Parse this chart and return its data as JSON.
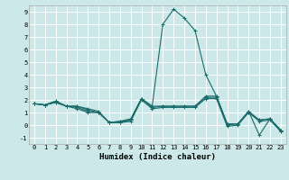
{
  "xlabel": "Humidex (Indice chaleur)",
  "xlim": [
    -0.5,
    23.5
  ],
  "ylim": [
    -1.5,
    9.5
  ],
  "xticks": [
    0,
    1,
    2,
    3,
    4,
    5,
    6,
    7,
    8,
    9,
    10,
    11,
    12,
    13,
    14,
    15,
    16,
    17,
    18,
    19,
    20,
    21,
    22,
    23
  ],
  "yticks": [
    -1,
    0,
    1,
    2,
    3,
    4,
    5,
    6,
    7,
    8,
    9
  ],
  "background_color": "#cce8e8",
  "grid_color": "#ffffff",
  "line_color": "#1a6b6b",
  "series": [
    [
      1.7,
      1.6,
      1.9,
      1.5,
      1.5,
      1.3,
      1.1,
      0.2,
      0.3,
      0.4,
      2.1,
      1.5,
      1.5,
      1.5,
      1.5,
      1.5,
      2.3,
      2.3,
      0.1,
      0.1,
      1.1,
      0.4,
      0.5,
      -0.4
    ],
    [
      1.7,
      1.6,
      1.9,
      1.5,
      1.5,
      1.2,
      1.0,
      0.2,
      0.2,
      0.4,
      2.1,
      1.4,
      1.5,
      1.5,
      1.5,
      1.5,
      2.2,
      2.2,
      0.0,
      0.1,
      1.0,
      0.4,
      0.5,
      -0.4
    ],
    [
      1.7,
      1.6,
      1.8,
      1.5,
      1.4,
      1.1,
      1.0,
      0.2,
      0.2,
      0.3,
      2.0,
      1.3,
      1.4,
      1.4,
      1.4,
      1.4,
      2.1,
      2.1,
      -0.1,
      0.0,
      1.0,
      0.3,
      0.4,
      -0.5
    ],
    [
      1.7,
      1.6,
      1.8,
      1.5,
      1.3,
      1.0,
      1.0,
      0.2,
      0.3,
      0.5,
      2.1,
      1.5,
      8.0,
      9.2,
      8.5,
      7.5,
      4.0,
      2.3,
      0.1,
      0.1,
      1.1,
      -0.8,
      0.5,
      -0.5
    ]
  ],
  "tick_fontsize": 5.0,
  "xlabel_fontsize": 6.5,
  "linewidth": 0.8,
  "markersize": 2.5
}
